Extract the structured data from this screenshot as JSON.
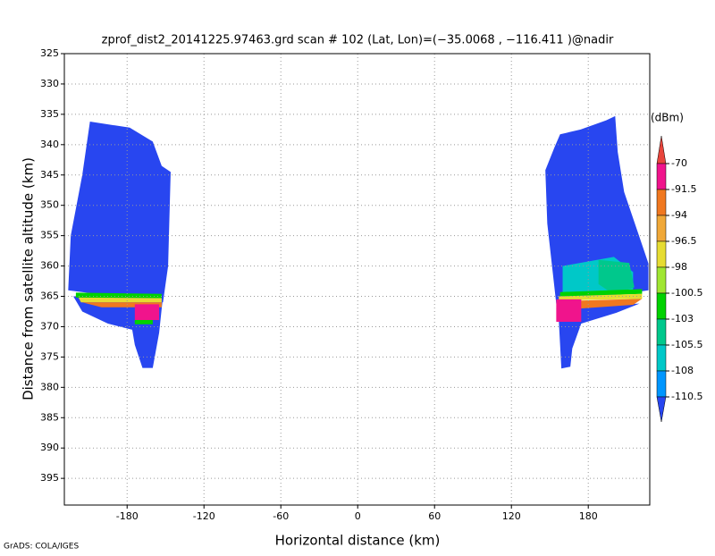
{
  "chart_data": {
    "type": "shaded",
    "title": "zprof_dist2_20141225.97463.grd  scan # 102  (Lat, Lon)=(−35.0068 , −116.411 )@nadir",
    "x_label": "Horizontal distance (km)",
    "y_label": "Distance from satellite altitude (km)",
    "footer": "GrADS: COLA/IGES",
    "xlim": [
      -229,
      228
    ],
    "ylim": [
      325,
      399.4
    ],
    "y_inverted": true,
    "xticks": [
      -180,
      -120,
      -60,
      0,
      60,
      120,
      180
    ],
    "yticks": [
      325,
      330,
      335,
      340,
      345,
      350,
      355,
      360,
      365,
      370,
      375,
      380,
      385,
      390,
      395
    ],
    "grid": true,
    "colorbar": {
      "label": "(dBm)",
      "levels": [
        -70,
        -91.5,
        -94,
        -96.5,
        -98,
        -100.5,
        -103,
        -105.5,
        -108,
        -110.5
      ],
      "colors": [
        "#e8453c",
        "#f0148c",
        "#f07820",
        "#f0a838",
        "#e6dc32",
        "#a0e632",
        "#00d200",
        "#00c88c",
        "#00c8c8",
        "#0096ff",
        "#2846f0"
      ]
    },
    "regions": [
      {
        "value": -112,
        "points": [
          [
            -209,
            336.2
          ],
          [
            -178,
            337.2
          ],
          [
            -160,
            339.5
          ],
          [
            -153,
            343.5
          ],
          [
            -146,
            344.5
          ],
          [
            -148,
            360
          ],
          [
            -152,
            366
          ],
          [
            -226,
            364
          ],
          [
            -224,
            355
          ],
          [
            -215,
            345
          ]
        ]
      },
      {
        "value": -112,
        "points": [
          [
            -222,
            365
          ],
          [
            -152,
            365
          ],
          [
            -155,
            371
          ],
          [
            -160,
            376.8
          ],
          [
            -168,
            376.8
          ],
          [
            -174,
            373
          ],
          [
            -176,
            370.5
          ],
          [
            -195,
            369.5
          ],
          [
            -215,
            367.5
          ]
        ]
      },
      {
        "value": -102,
        "points": [
          [
            -220,
            364.4
          ],
          [
            -153,
            364.6
          ],
          [
            -153,
            365.3
          ],
          [
            -220,
            365.2
          ]
        ]
      },
      {
        "value": -97,
        "points": [
          [
            -218,
            365.2
          ],
          [
            -153,
            365.3
          ],
          [
            -153,
            366
          ],
          [
            -216,
            366
          ]
        ]
      },
      {
        "value": -93,
        "points": [
          [
            -215,
            366
          ],
          [
            -153,
            366
          ],
          [
            -153,
            366.8
          ],
          [
            -200,
            366.8
          ]
        ]
      },
      {
        "value": -85,
        "points": [
          [
            -174,
            366.3
          ],
          [
            -155,
            366.3
          ],
          [
            -155,
            368.9
          ],
          [
            -174,
            368.9
          ]
        ]
      },
      {
        "value": -102,
        "points": [
          [
            -174,
            368.9
          ],
          [
            -160,
            368.9
          ],
          [
            -160,
            369.6
          ],
          [
            -174,
            369.6
          ]
        ]
      },
      {
        "value": -112,
        "points": [
          [
            158,
            338.3
          ],
          [
            174,
            337.5
          ],
          [
            194,
            336
          ],
          [
            201,
            335.3
          ],
          [
            203,
            341.2
          ],
          [
            208,
            347.8
          ],
          [
            227,
            359.6
          ],
          [
            227,
            364
          ],
          [
            155,
            366.2
          ],
          [
            148,
            353
          ],
          [
            146.5,
            344.2
          ],
          [
            153.5,
            340.5
          ]
        ]
      },
      {
        "value": -112,
        "points": [
          [
            155,
            367
          ],
          [
            220,
            366.2
          ],
          [
            202,
            367.7
          ],
          [
            174.5,
            369.5
          ],
          [
            167.5,
            373.6
          ],
          [
            166,
            376.6
          ],
          [
            159,
            376.9
          ],
          [
            157,
            369
          ]
        ]
      },
      {
        "value": -107,
        "points": [
          [
            160,
            360
          ],
          [
            200,
            358.5
          ],
          [
            215,
            361
          ],
          [
            215,
            364.5
          ],
          [
            160,
            364.5
          ]
        ]
      },
      {
        "value": -104.5,
        "points": [
          [
            188,
            359
          ],
          [
            212,
            359.5
          ],
          [
            216,
            363.5
          ],
          [
            200,
            364.7
          ],
          [
            188,
            363
          ]
        ]
      },
      {
        "value": -102,
        "points": [
          [
            158,
            364.3
          ],
          [
            222,
            363.8
          ],
          [
            222,
            364.6
          ],
          [
            158,
            365
          ]
        ]
      },
      {
        "value": -97,
        "points": [
          [
            157,
            365
          ],
          [
            222,
            364.6
          ],
          [
            222,
            365.4
          ],
          [
            157,
            365.7
          ]
        ]
      },
      {
        "value": -93,
        "points": [
          [
            174,
            365.7
          ],
          [
            222,
            365.4
          ],
          [
            215,
            366.4
          ],
          [
            174,
            367
          ]
        ]
      },
      {
        "value": -85,
        "points": [
          [
            155,
            365.5
          ],
          [
            174.5,
            365.5
          ],
          [
            174.5,
            369.2
          ],
          [
            155,
            369.2
          ]
        ]
      }
    ]
  }
}
